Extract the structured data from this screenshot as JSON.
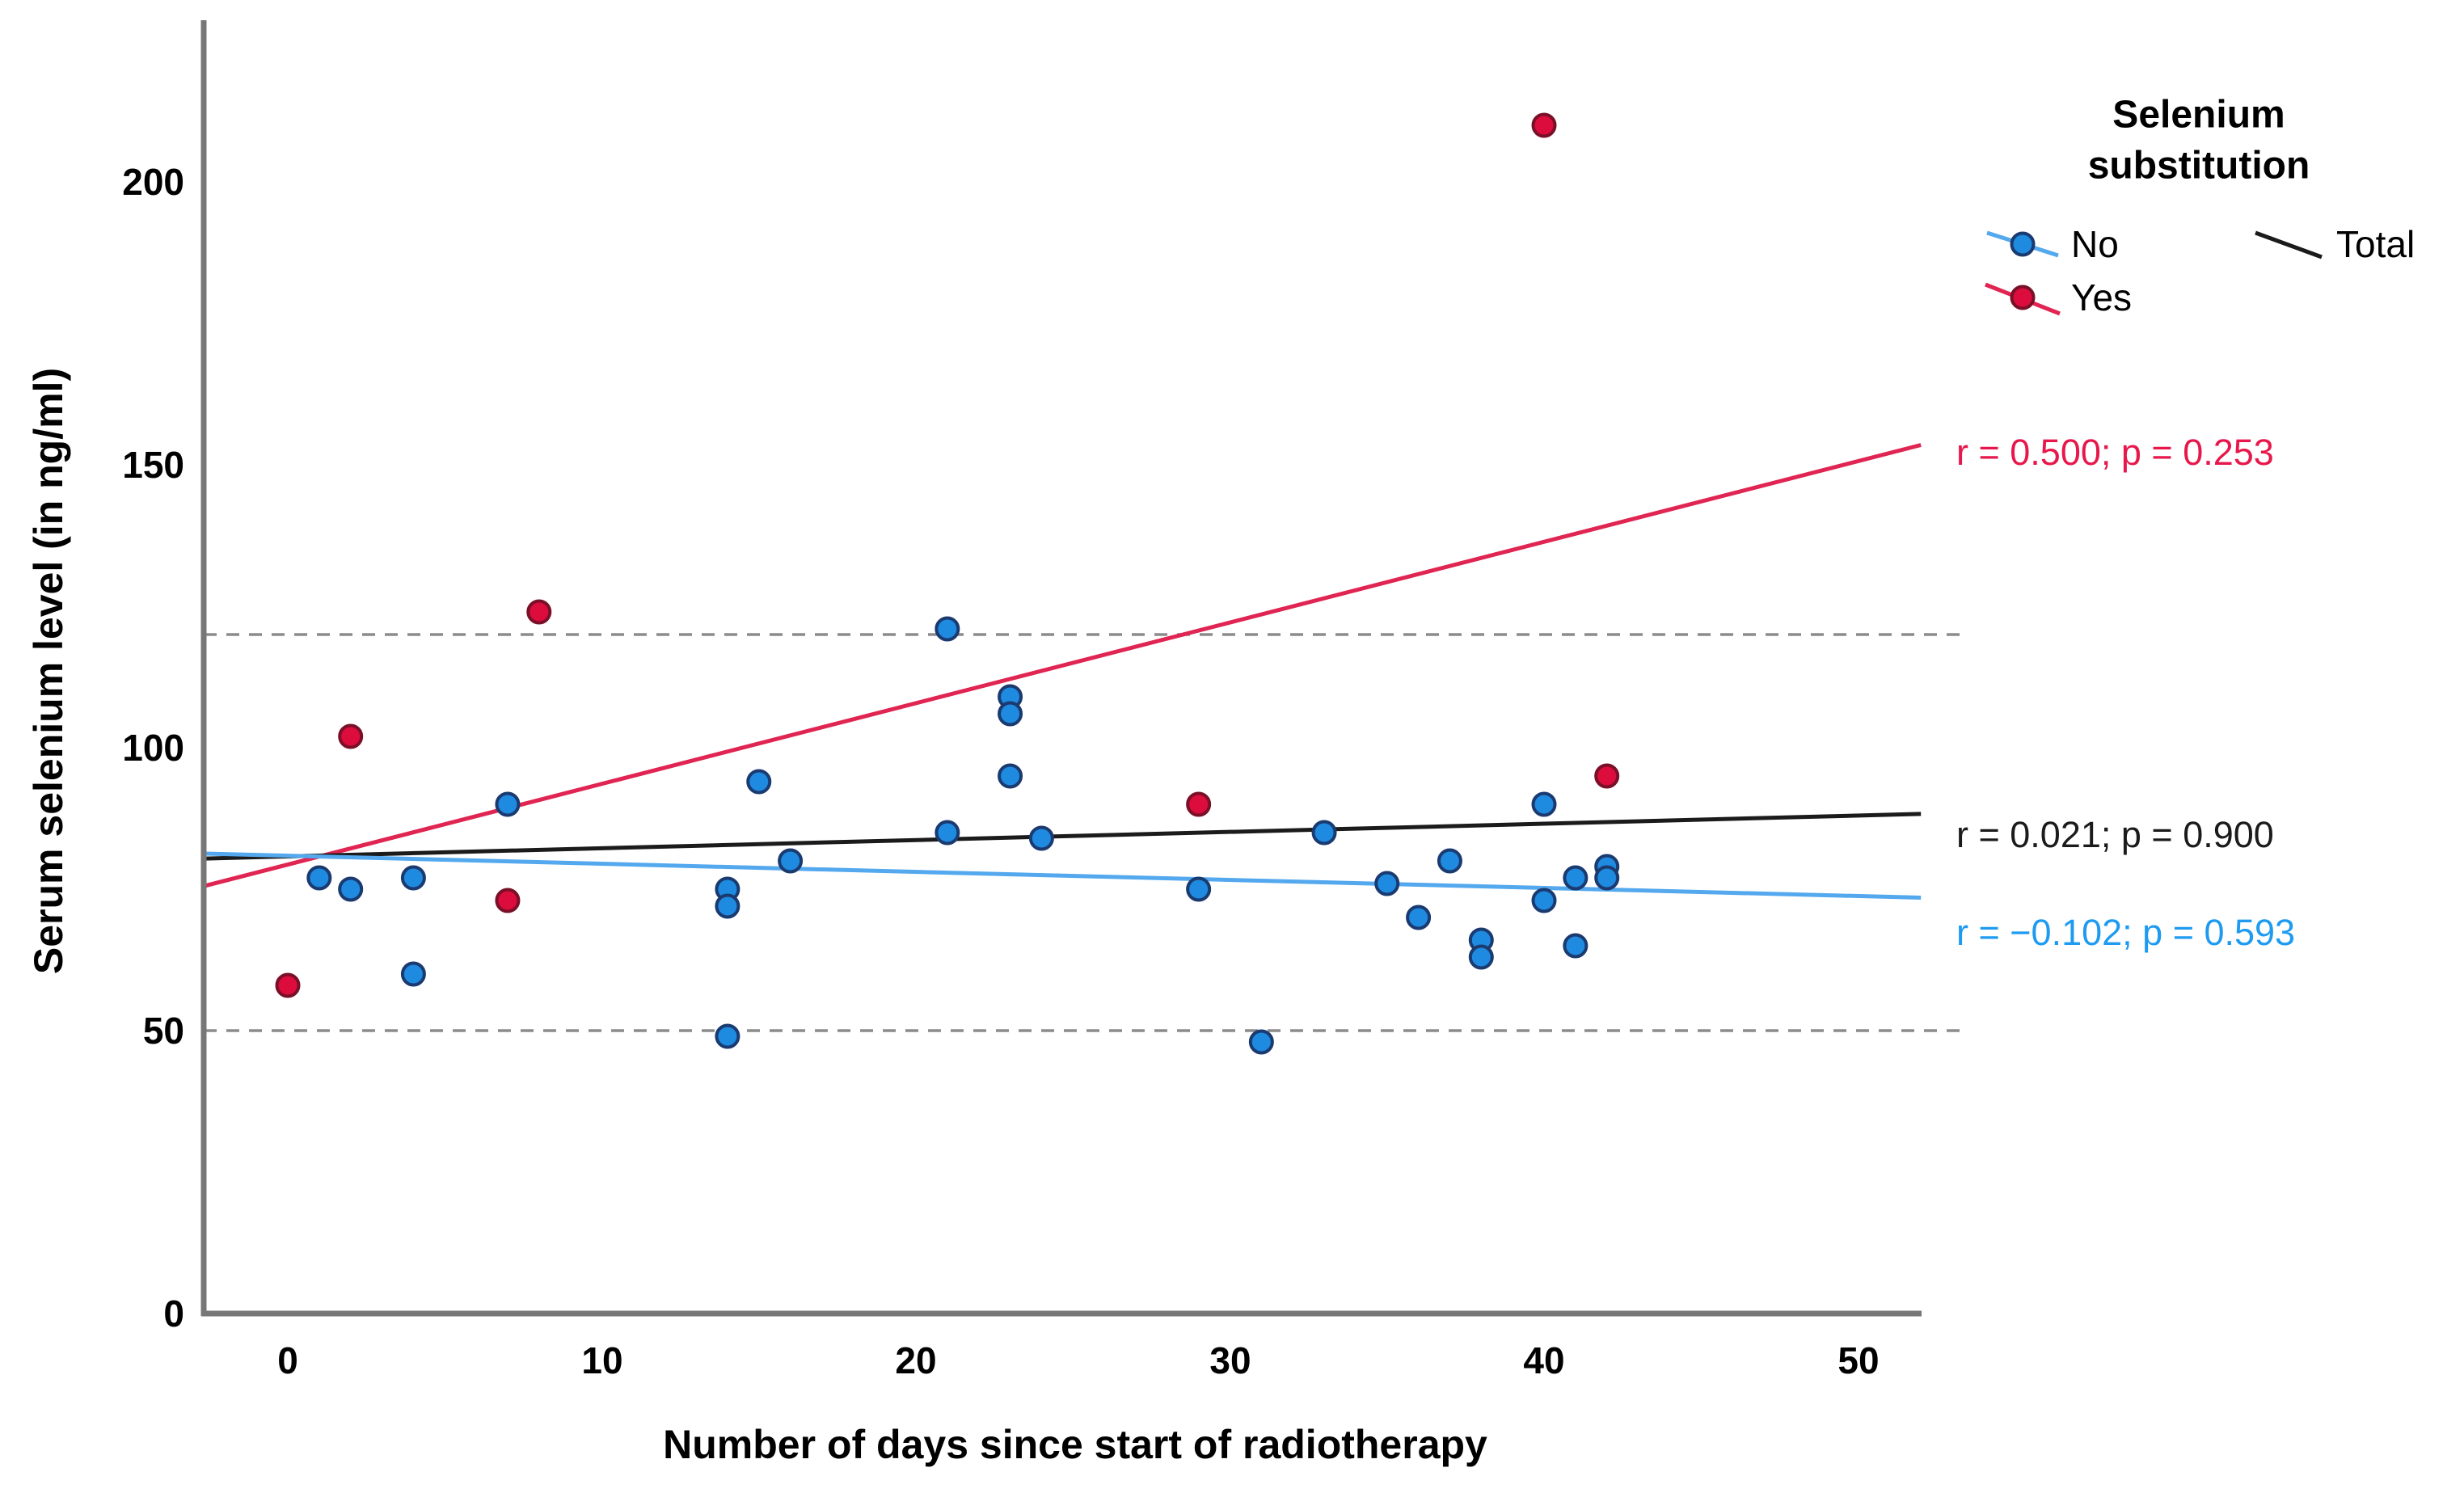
{
  "chart_data": {
    "type": "scatter",
    "xlabel": "Number of days since start of radiotherapy",
    "ylabel": "Serum selenium level (in ng/ml)",
    "x_ticks": [
      0,
      10,
      20,
      30,
      40,
      50
    ],
    "y_ticks": [
      0,
      50,
      100,
      150,
      200
    ],
    "xlim": [
      -2.7,
      52
    ],
    "ylim": [
      0,
      229
    ],
    "grid": "off",
    "reference_lines": [
      120,
      50
    ],
    "legend": {
      "title_line1": "Selenium",
      "title_line2": "substitution",
      "items": [
        {
          "label": "No",
          "marker": "circle-line",
          "color": "#1e8ae0"
        },
        {
          "label": "Yes",
          "marker": "circle-line",
          "color": "#dc0c3c"
        },
        {
          "label": "Total",
          "marker": "line",
          "color": "#1b1b1b"
        }
      ]
    },
    "series": [
      {
        "name": "No",
        "fill": "#1e8ae0",
        "stroke": "#1a3a70",
        "points": [
          [
            1,
            77
          ],
          [
            2,
            75
          ],
          [
            4,
            77
          ],
          [
            4,
            60
          ],
          [
            7,
            90
          ],
          [
            14,
            75
          ],
          [
            14,
            72
          ],
          [
            14,
            49
          ],
          [
            15,
            94
          ],
          [
            16,
            80
          ],
          [
            21,
            121
          ],
          [
            21,
            85
          ],
          [
            23,
            109
          ],
          [
            23,
            106
          ],
          [
            23,
            95
          ],
          [
            24,
            84
          ],
          [
            29,
            75
          ],
          [
            31,
            48
          ],
          [
            33,
            85
          ],
          [
            35,
            76
          ],
          [
            36,
            70
          ],
          [
            37,
            80
          ],
          [
            38,
            66
          ],
          [
            38,
            63
          ],
          [
            40,
            90
          ],
          [
            40,
            73
          ],
          [
            41,
            65
          ],
          [
            41,
            77
          ],
          [
            42,
            79
          ],
          [
            42,
            77
          ]
        ]
      },
      {
        "name": "Yes",
        "fill": "#dc0c3c",
        "stroke": "#7a1028",
        "points": [
          [
            0,
            58
          ],
          [
            2,
            102
          ],
          [
            7,
            73
          ],
          [
            8,
            124
          ],
          [
            29,
            90
          ],
          [
            40,
            210
          ],
          [
            42,
            95
          ]
        ]
      }
    ],
    "fit_lines": [
      {
        "name": "Yes",
        "color": "#e02552",
        "x": [
          -2.7,
          52
        ],
        "y": [
          75.5,
          153.5
        ],
        "annotation": "r = 0.500; p = 0.253"
      },
      {
        "name": "Total",
        "color": "#1b1b1b",
        "x": [
          -2.7,
          52
        ],
        "y": [
          80.4,
          88.3
        ],
        "annotation": "r = 0.021; p = 0.900"
      },
      {
        "name": "No",
        "color": "#53a8ee",
        "x": [
          -2.7,
          52
        ],
        "y": [
          81.3,
          73.5
        ],
        "annotation": "r = −0.102; p = 0.593"
      }
    ],
    "annotation_colors": {
      "yes": "#e8174b",
      "total": "#1b1b1b",
      "no": "#1e9bf0"
    },
    "axis_color": "#777777",
    "dashed_color": "#8c8c8c"
  }
}
